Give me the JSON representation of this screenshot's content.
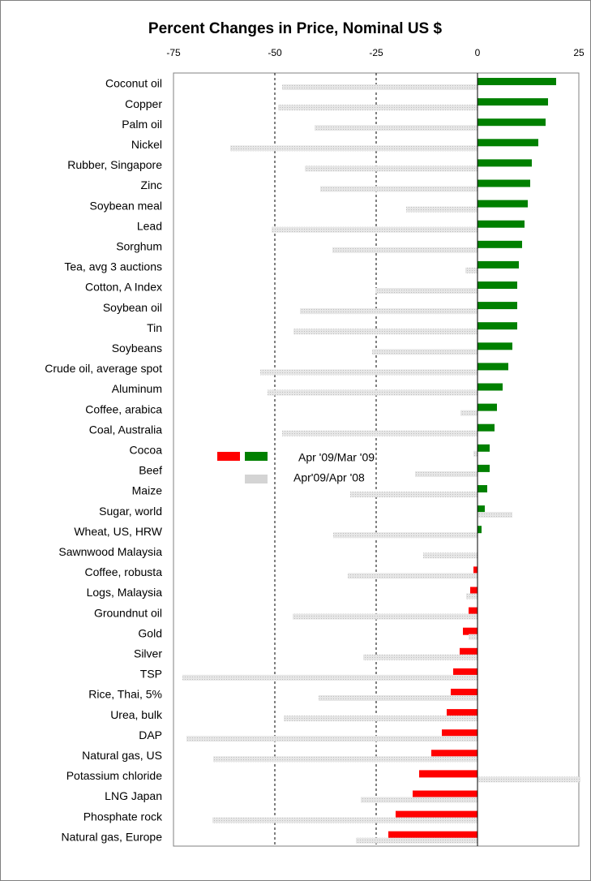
{
  "chart_data": {
    "type": "bar",
    "orientation": "horizontal",
    "title": "Percent Changes in Price, Nominal US $",
    "categories": [
      "Coconut oil",
      "Copper",
      "Palm oil",
      "Nickel",
      "Rubber, Singapore",
      "Zinc",
      "Soybean meal",
      "Lead",
      "Sorghum",
      "Tea, avg 3 auctions",
      "Cotton, A Index",
      "Soybean oil",
      "Tin",
      "Soybeans",
      "Crude oil, average spot",
      "Aluminum",
      "Coffee, arabica",
      "Coal, Australia",
      "Cocoa",
      "Beef",
      "Maize",
      "Sugar, world",
      "Wheat, US, HRW",
      "Sawnwood Malaysia",
      "Coffee,  robusta",
      "Logs, Malaysia",
      "Groundnut oil",
      "Gold",
      "Silver",
      "TSP",
      "Rice, Thai, 5%",
      "Urea, bulk",
      "DAP",
      "Natural gas, US",
      "Potassium chloride",
      "LNG Japan",
      "Phosphate rock",
      "Natural gas, Europe"
    ],
    "series": [
      {
        "name": "Apr '09/Mar '09",
        "color": "#008000",
        "negative_color": "#ff0000",
        "values": [
          19.4,
          17.4,
          16.8,
          15,
          13.4,
          13,
          12.4,
          11.6,
          11,
          10.2,
          9.8,
          9.8,
          9.8,
          8.6,
          7.6,
          6.2,
          4.8,
          4.2,
          3,
          3,
          2.4,
          1.8,
          1,
          0,
          -1,
          -1.8,
          -2.2,
          -3.6,
          -4.4,
          -6,
          -6.6,
          -7.6,
          -8.8,
          -11.4,
          -14.4,
          -16,
          -20.2,
          -22
        ]
      },
      {
        "name": "Apr'09/Apr '08",
        "color": "#d4d4d4",
        "values": [
          -48.2,
          -49.2,
          -40.2,
          -61,
          -42.6,
          -38.8,
          -17.6,
          -50.8,
          -35.8,
          -3,
          -25.2,
          -43.8,
          -45.4,
          -26,
          -53.6,
          -51.8,
          -4.2,
          -48.2,
          -1,
          -15.4,
          -31.4,
          8.6,
          -35.6,
          -13.4,
          -32,
          -2.8,
          -45.6,
          -2.2,
          -28.2,
          -72.8,
          -39.2,
          -47.8,
          -71.8,
          -65.2,
          25.4,
          -28.8,
          -65.4,
          -30
        ]
      }
    ],
    "xlim": [
      -75,
      25
    ],
    "xticks": [
      -75,
      -50,
      -25,
      0,
      25
    ],
    "grid": true
  }
}
